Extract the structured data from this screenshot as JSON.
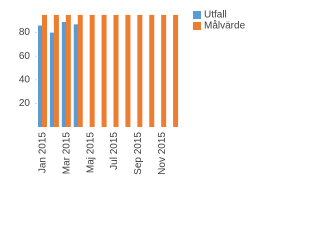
{
  "chart_data": {
    "type": "bar",
    "categories": [
      "Jan 2015",
      null,
      "Mar 2015",
      null,
      "Maj 2015",
      null,
      "Jul 2015",
      null,
      "Sep 2015",
      null,
      "Nov 2015",
      null
    ],
    "series": [
      {
        "name": "Utfall",
        "color": "#5b9bd5",
        "values": [
          86,
          80,
          89,
          87,
          null,
          null,
          null,
          null,
          null,
          null,
          null,
          null
        ]
      },
      {
        "name": "Målvärde",
        "color": "#ed7d31",
        "values": [
          95,
          95,
          95,
          95,
          95,
          95,
          95,
          95,
          95,
          95,
          95,
          95
        ]
      }
    ],
    "ylim": [
      0,
      100
    ],
    "yticks": [
      20,
      40,
      60,
      80
    ],
    "legend": "right"
  }
}
